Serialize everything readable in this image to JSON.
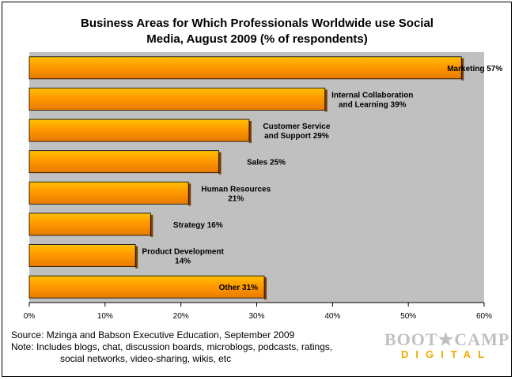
{
  "chart_data": {
    "type": "bar",
    "orientation": "horizontal",
    "title_line1": "Business Areas for Which Professionals Worldwide use Social",
    "title_line2": "Media, August 2009 (% of respondents)",
    "categories": [
      [
        "Marketing 57%"
      ],
      [
        "Internal Collaboration",
        "and Learning 39%"
      ],
      [
        "Customer Service",
        "and Support 29%"
      ],
      [
        "Sales 25%"
      ],
      [
        "Human Resources",
        "21%"
      ],
      [
        "Strategy 16%"
      ],
      [
        "Product Development",
        "14%"
      ],
      [
        "Other 31%"
      ]
    ],
    "values": [
      57,
      39,
      29,
      25,
      21,
      16,
      14,
      31
    ],
    "xlim": [
      0,
      60
    ],
    "x_ticks": [
      0,
      10,
      20,
      30,
      40,
      50,
      60
    ],
    "x_tick_labels": [
      "0%",
      "10%",
      "20%",
      "30%",
      "40%",
      "50%",
      "60%"
    ],
    "grid": false,
    "colors": {
      "bar_fill_light": "#ffc000",
      "bar_fill_dark": "#e87a00",
      "bar_edge": "#000000",
      "plot_background": "#c0c0c0"
    }
  },
  "source": {
    "line1": "Source: Mzinga and Babson Executive Education, September 2009",
    "line2": "Note: Includes blogs, chat, discussion boards, microblogs, podcasts, ratings,",
    "line3": "social networks, video-sharing, wikis, etc"
  },
  "logo": {
    "top": "BOOT★CAMP",
    "bottom": "DIGITAL",
    "colors": {
      "top": "#c0c0c0",
      "bottom": "#f2a900"
    }
  }
}
